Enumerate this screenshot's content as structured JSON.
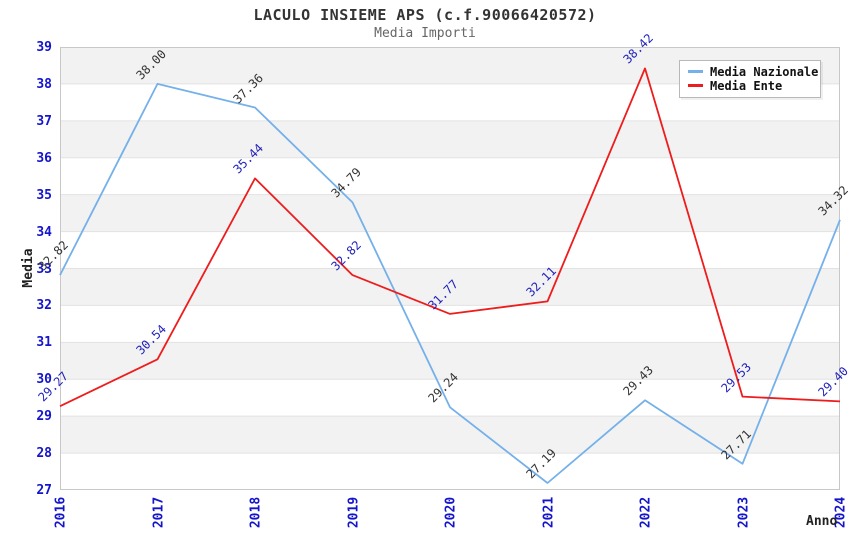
{
  "chart_data": {
    "type": "line",
    "title": "LACULO INSIEME APS (c.f.90066420572)",
    "subtitle": "Media Importi",
    "xlabel": "Anno",
    "ylabel": "Media",
    "categories": [
      "2016",
      "2017",
      "2018",
      "2019",
      "2020",
      "2021",
      "2022",
      "2023",
      "2024"
    ],
    "ylim": [
      27,
      39
    ],
    "ytick_step": 1,
    "grid": true,
    "legend_position": "top-right",
    "band_colors": [
      "#f2f2f2",
      "#ffffff"
    ],
    "grid_color": "#e2e2e2",
    "border_color": "#c8c8c8",
    "axis_tick_color": "#1414cc",
    "series": [
      {
        "name": "Media Nazionale",
        "color": "#74b0ea",
        "label_color": "#333333",
        "values": [
          32.82,
          38.0,
          37.36,
          34.79,
          29.24,
          27.19,
          29.43,
          27.71,
          34.32
        ]
      },
      {
        "name": "Media Ente",
        "color": "#ee1c1c",
        "label_color": "#2222bb",
        "values": [
          29.27,
          30.54,
          35.44,
          32.82,
          31.77,
          32.11,
          38.42,
          29.53,
          29.4
        ]
      }
    ]
  }
}
